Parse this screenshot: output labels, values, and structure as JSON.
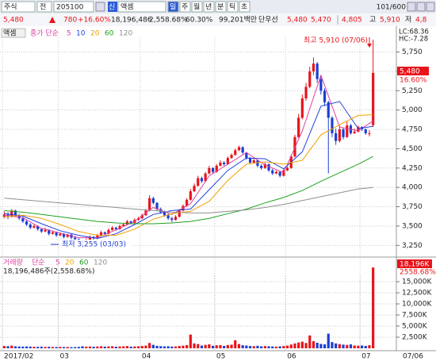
{
  "toolbar": {
    "market": "주식",
    "mode": "전",
    "code": "205100",
    "badge": "신",
    "name": "액셈",
    "periods": [
      "일",
      "주",
      "월",
      "년",
      "분",
      "틱",
      "초"
    ],
    "count": "101/600"
  },
  "quote": {
    "price": "5,480",
    "change": "780",
    "change_rate": "+16.60%",
    "volume": "18,196,486",
    "volume_rate": "2,558.68%",
    "turnover": "60.30%",
    "amount": "99,201백만",
    "type": "단우선",
    "ask": "5,480",
    "bid": "5,470",
    "open": "4,805",
    "high_label": "고",
    "high": "5,910",
    "low_label": "저",
    "low": "4,8"
  },
  "last_date": "07/06",
  "chart_data": [
    {
      "type": "candlestick",
      "title": "액셈",
      "legend_title": "종가 단순",
      "up_color": "#e8141b",
      "down_color": "#1c3fd0",
      "ylim": [
        3120,
        5940
      ],
      "yticks": [
        {
          "value": 3250,
          "label": "3,250"
        },
        {
          "value": 3500,
          "label": "3,500"
        },
        {
          "value": 3750,
          "label": "3,750"
        },
        {
          "value": 4000,
          "label": "4,000"
        },
        {
          "value": 4250,
          "label": "4,250"
        },
        {
          "value": 4500,
          "label": "4,500"
        },
        {
          "value": 4750,
          "label": "4,750"
        },
        {
          "value": 5000,
          "label": "5,000"
        },
        {
          "value": 5250,
          "label": "5,250"
        },
        {
          "value": 5500,
          "label": "5,500"
        },
        {
          "value": 5750,
          "label": "5,750"
        }
      ],
      "xticks": [
        {
          "value": 0,
          "label": "2017/02"
        },
        {
          "value": 15,
          "label": "03"
        },
        {
          "value": 37,
          "label": "04"
        },
        {
          "value": 57,
          "label": "05"
        },
        {
          "value": 76,
          "label": "06"
        },
        {
          "value": 96,
          "label": "07"
        }
      ],
      "annotations": [
        "최고 5,910 (07/06)",
        "최저 3,255 (03/03)"
      ],
      "price_label": "5,480",
      "rate_label": "16.60%",
      "lc": "LC:68.36",
      "hc": "HC:-7.28",
      "ohlc": [
        [
          3620,
          3690,
          3600,
          3650
        ],
        [
          3650,
          3680,
          3590,
          3620
        ],
        [
          3620,
          3720,
          3610,
          3700
        ],
        [
          3700,
          3710,
          3620,
          3640
        ],
        [
          3640,
          3660,
          3580,
          3600
        ],
        [
          3600,
          3620,
          3540,
          3560
        ],
        [
          3560,
          3580,
          3500,
          3520
        ],
        [
          3520,
          3540,
          3460,
          3480
        ],
        [
          3480,
          3530,
          3470,
          3500
        ],
        [
          3500,
          3510,
          3440,
          3460
        ],
        [
          3460,
          3470,
          3410,
          3430
        ],
        [
          3430,
          3480,
          3420,
          3450
        ],
        [
          3450,
          3460,
          3380,
          3400
        ],
        [
          3400,
          3440,
          3390,
          3420
        ],
        [
          3420,
          3430,
          3360,
          3380
        ],
        [
          3380,
          3420,
          3370,
          3400
        ],
        [
          3400,
          3410,
          3340,
          3360
        ],
        [
          3360,
          3400,
          3350,
          3390
        ],
        [
          3390,
          3400,
          3330,
          3350
        ],
        [
          3350,
          3370,
          3310,
          3330
        ],
        [
          3330,
          3340,
          3290,
          3310
        ],
        [
          3310,
          3320,
          3255,
          3300
        ],
        [
          3300,
          3340,
          3290,
          3320
        ],
        [
          3320,
          3380,
          3310,
          3360
        ],
        [
          3360,
          3370,
          3320,
          3340
        ],
        [
          3340,
          3400,
          3330,
          3380
        ],
        [
          3380,
          3440,
          3370,
          3420
        ],
        [
          3420,
          3430,
          3380,
          3400
        ],
        [
          3400,
          3470,
          3390,
          3450
        ],
        [
          3450,
          3500,
          3440,
          3480
        ],
        [
          3480,
          3490,
          3440,
          3460
        ],
        [
          3460,
          3520,
          3450,
          3500
        ],
        [
          3500,
          3540,
          3490,
          3520
        ],
        [
          3520,
          3580,
          3510,
          3560
        ],
        [
          3560,
          3570,
          3520,
          3540
        ],
        [
          3540,
          3600,
          3530,
          3580
        ],
        [
          3580,
          3620,
          3570,
          3600
        ],
        [
          3600,
          3660,
          3590,
          3640
        ],
        [
          3640,
          3720,
          3630,
          3700
        ],
        [
          3700,
          3900,
          3690,
          3860
        ],
        [
          3860,
          3880,
          3780,
          3800
        ],
        [
          3800,
          3810,
          3700,
          3720
        ],
        [
          3720,
          3740,
          3660,
          3680
        ],
        [
          3680,
          3700,
          3620,
          3640
        ],
        [
          3640,
          3660,
          3580,
          3600
        ],
        [
          3600,
          3620,
          3550,
          3580
        ],
        [
          3580,
          3640,
          3570,
          3620
        ],
        [
          3620,
          3720,
          3610,
          3700
        ],
        [
          3700,
          3780,
          3690,
          3760
        ],
        [
          3760,
          3860,
          3750,
          3840
        ],
        [
          3840,
          3980,
          3830,
          3950
        ],
        [
          3950,
          4050,
          3940,
          4020
        ],
        [
          4020,
          4150,
          4010,
          4120
        ],
        [
          4120,
          4140,
          4060,
          4080
        ],
        [
          4080,
          4200,
          4070,
          4180
        ],
        [
          4180,
          4280,
          4170,
          4250
        ],
        [
          4250,
          4260,
          4180,
          4200
        ],
        [
          4200,
          4300,
          4190,
          4280
        ],
        [
          4280,
          4350,
          4270,
          4320
        ],
        [
          4320,
          4340,
          4280,
          4300
        ],
        [
          4300,
          4400,
          4290,
          4380
        ],
        [
          4380,
          4440,
          4370,
          4420
        ],
        [
          4420,
          4500,
          4410,
          4480
        ],
        [
          4480,
          4540,
          4470,
          4520
        ],
        [
          4520,
          4530,
          4430,
          4450
        ],
        [
          4450,
          4460,
          4360,
          4380
        ],
        [
          4380,
          4390,
          4300,
          4320
        ],
        [
          4320,
          4370,
          4310,
          4350
        ],
        [
          4350,
          4360,
          4260,
          4280
        ],
        [
          4280,
          4300,
          4230,
          4250
        ],
        [
          4250,
          4320,
          4240,
          4300
        ],
        [
          4300,
          4310,
          4200,
          4220
        ],
        [
          4220,
          4240,
          4160,
          4180
        ],
        [
          4180,
          4220,
          4170,
          4200
        ],
        [
          4200,
          4210,
          4130,
          4150
        ],
        [
          4150,
          4240,
          4140,
          4220
        ],
        [
          4220,
          4270,
          4210,
          4250
        ],
        [
          4250,
          4420,
          4240,
          4400
        ],
        [
          4400,
          4680,
          4390,
          4650
        ],
        [
          4650,
          4950,
          4640,
          4900
        ],
        [
          4900,
          5200,
          4880,
          5150
        ],
        [
          5150,
          5350,
          5120,
          5300
        ],
        [
          5300,
          5560,
          5280,
          5500
        ],
        [
          5500,
          5680,
          5450,
          5600
        ],
        [
          5600,
          5620,
          5350,
          5400
        ],
        [
          5400,
          5440,
          5200,
          5250
        ],
        [
          5250,
          5280,
          5050,
          5100
        ],
        [
          5100,
          5120,
          4180,
          4900
        ],
        [
          4900,
          4920,
          4650,
          4700
        ],
        [
          4700,
          4760,
          4550,
          4600
        ],
        [
          4600,
          4800,
          4580,
          4750
        ],
        [
          4750,
          4770,
          4620,
          4650
        ],
        [
          4650,
          4850,
          4640,
          4800
        ],
        [
          4800,
          4820,
          4680,
          4700
        ],
        [
          4700,
          4760,
          4690,
          4720
        ],
        [
          4720,
          4800,
          4710,
          4780
        ],
        [
          4780,
          4790,
          4730,
          4750
        ],
        [
          4750,
          4760,
          4680,
          4700
        ],
        [
          4700,
          4740,
          4660,
          4700
        ],
        [
          4805,
          5910,
          4780,
          5480
        ]
      ],
      "series": [
        {
          "name": "5",
          "color": "#e040a0",
          "x": [
            0,
            5,
            10,
            15,
            20,
            25,
            30,
            35,
            40,
            45,
            50,
            55,
            60,
            65,
            70,
            75,
            80,
            85,
            90,
            95,
            99
          ],
          "values": [
            3640,
            3610,
            3470,
            3410,
            3350,
            3350,
            3450,
            3560,
            3740,
            3650,
            3790,
            4150,
            4300,
            4450,
            4290,
            4190,
            4730,
            5450,
            4780,
            4730,
            4860
          ]
        },
        {
          "name": "10",
          "color": "#2040e0",
          "x": [
            0,
            5,
            10,
            15,
            20,
            25,
            30,
            35,
            40,
            45,
            50,
            55,
            60,
            65,
            70,
            75,
            80,
            85,
            90,
            95,
            99
          ],
          "values": [
            3660,
            3630,
            3530,
            3440,
            3380,
            3340,
            3400,
            3520,
            3650,
            3700,
            3720,
            3970,
            4220,
            4380,
            4370,
            4240,
            4460,
            5050,
            5110,
            4760,
            4790
          ]
        },
        {
          "name": "20",
          "color": "#f0a000",
          "x": [
            0,
            5,
            10,
            15,
            20,
            25,
            30,
            35,
            40,
            45,
            50,
            55,
            60,
            65,
            70,
            75,
            80,
            85,
            90,
            95,
            99
          ],
          "values": [
            3620,
            3640,
            3600,
            3520,
            3430,
            3380,
            3380,
            3460,
            3590,
            3660,
            3690,
            3820,
            4090,
            4300,
            4330,
            4300,
            4350,
            4680,
            4810,
            4930,
            4940
          ]
        },
        {
          "name": "60",
          "color": "#20a020",
          "x": [
            0,
            5,
            10,
            15,
            20,
            25,
            30,
            35,
            40,
            45,
            50,
            55,
            60,
            65,
            70,
            75,
            80,
            85,
            90,
            95,
            99
          ],
          "values": [
            3700,
            3680,
            3650,
            3620,
            3590,
            3560,
            3540,
            3530,
            3530,
            3540,
            3560,
            3600,
            3660,
            3720,
            3800,
            3870,
            3960,
            4080,
            4190,
            4300,
            4400
          ]
        },
        {
          "name": "120",
          "color": "#909090",
          "x": [
            0,
            5,
            10,
            15,
            20,
            25,
            30,
            35,
            40,
            45,
            50,
            55,
            60,
            65,
            70,
            75,
            80,
            85,
            90,
            95,
            99
          ],
          "values": [
            3860,
            3840,
            3820,
            3800,
            3780,
            3760,
            3740,
            3720,
            3700,
            3680,
            3670,
            3670,
            3690,
            3710,
            3740,
            3780,
            3830,
            3880,
            3930,
            3980,
            4000
          ]
        }
      ]
    },
    {
      "type": "bar",
      "title": "거래량",
      "legend_title": "단순",
      "legend": [
        "5",
        "20",
        "60",
        "120"
      ],
      "legend_colors": [
        "#e040a0",
        "#f0a000",
        "#20a020",
        "#909090"
      ],
      "summary": "18,196,486주(2,558.68%)",
      "last_label": "18,196K",
      "rate_label": "2558.68%",
      "ylim": [
        0,
        18400000
      ],
      "yticks": [
        {
          "value": 2500000,
          "label": "2,500K"
        },
        {
          "value": 5000000,
          "label": "5,000K"
        },
        {
          "value": 7500000,
          "label": "7,500K"
        },
        {
          "value": 10000000,
          "label": "10,000K"
        },
        {
          "value": 12500000,
          "label": "12,500K"
        },
        {
          "value": 15000000,
          "label": "15,000K"
        }
      ],
      "values": [
        520000,
        480000,
        610000,
        450000,
        400000,
        380000,
        420000,
        390000,
        350000,
        330000,
        360000,
        310000,
        340000,
        300000,
        290000,
        320000,
        280000,
        300000,
        260000,
        270000,
        310000,
        450000,
        380000,
        420000,
        350000,
        400000,
        460000,
        380000,
        430000,
        470000,
        360000,
        410000,
        440000,
        500000,
        380000,
        420000,
        450000,
        520000,
        610000,
        1200000,
        780000,
        560000,
        480000,
        430000,
        460000,
        390000,
        420000,
        520000,
        600000,
        720000,
        3100000,
        1100000,
        950000,
        620000,
        780000,
        900000,
        560000,
        680000,
        720000,
        540000,
        740000,
        820000,
        1800000,
        960000,
        700000,
        620000,
        520000,
        480000,
        560000,
        440000,
        500000,
        460000,
        420000,
        380000,
        440000,
        520000,
        600000,
        850000,
        1100000,
        1300000,
        1500000,
        1200000,
        2900000,
        1600000,
        1250000,
        980000,
        900000,
        3300000,
        1400000,
        1100000,
        950000,
        820000,
        760000,
        880000,
        640000,
        580000,
        620000,
        540000,
        700000,
        18196486
      ]
    }
  ]
}
